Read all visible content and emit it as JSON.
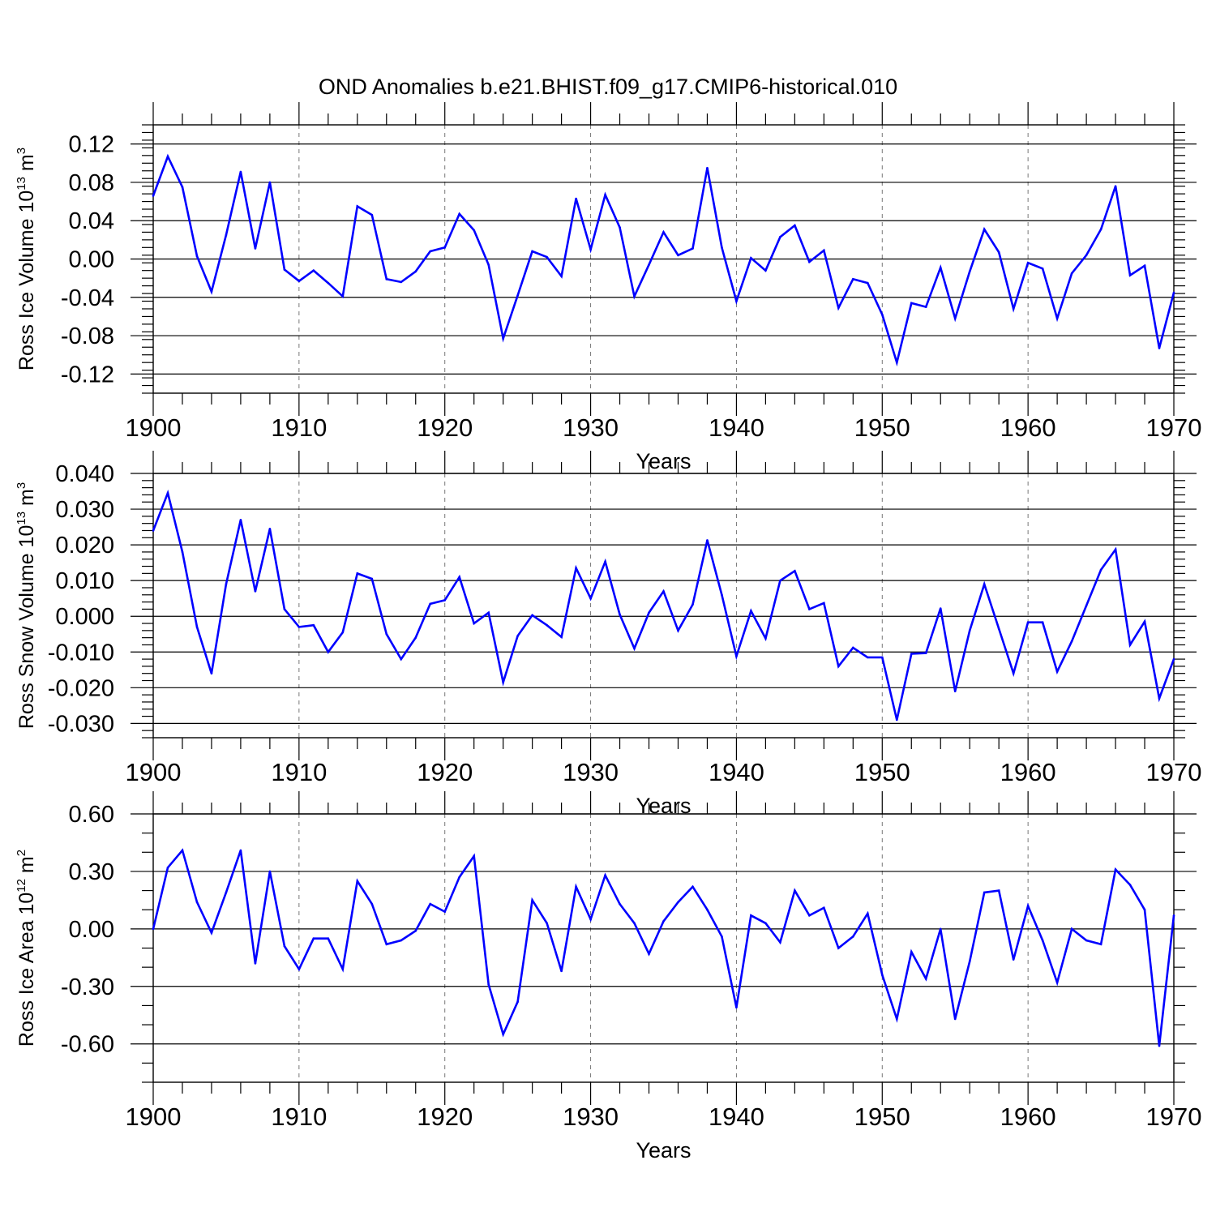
{
  "title": "OND Anomalies b.e21.BHIST.f09_g17.CMIP6-historical.010",
  "colors": {
    "series": "#0000ff",
    "frame": "#000000",
    "grid": "#777777"
  },
  "chart_data": [
    {
      "type": "line",
      "ylabel": {
        "main": "Ross Ice Volume 10",
        "exponent": "13",
        "unit": " m",
        "unit_exponent": "3"
      },
      "xlabel": "Years",
      "xlim": [
        1900,
        1970
      ],
      "ylim": [
        -0.14,
        0.14
      ],
      "yticks": [
        -0.12,
        -0.08,
        -0.04,
        0.0,
        0.04,
        0.08,
        0.12
      ],
      "ytick_labels": [
        "-0.12",
        "-0.08",
        "-0.04",
        "0.00",
        "0.04",
        "0.08",
        "0.12"
      ],
      "yminor": 0.008,
      "xticks": [
        1900,
        1910,
        1920,
        1930,
        1940,
        1950,
        1960,
        1970
      ],
      "xtick_labels": [
        "1900",
        "1910",
        "1920",
        "1930",
        "1940",
        "1950",
        "1960",
        "1970"
      ],
      "grid": "vertical dashed",
      "x": [
        1900,
        1901,
        1902,
        1903,
        1904,
        1905,
        1906,
        1907,
        1908,
        1909,
        1910,
        1911,
        1912,
        1913,
        1914,
        1915,
        1916,
        1917,
        1918,
        1919,
        1920,
        1921,
        1922,
        1923,
        1924,
        1925,
        1926,
        1927,
        1928,
        1929,
        1930,
        1931,
        1932,
        1933,
        1934,
        1935,
        1936,
        1937,
        1938,
        1939,
        1940,
        1941,
        1942,
        1943,
        1944,
        1945,
        1946,
        1947,
        1948,
        1949,
        1950,
        1951,
        1952,
        1953,
        1954,
        1955,
        1956,
        1957,
        1958,
        1959,
        1960,
        1961,
        1962,
        1963,
        1964,
        1965,
        1966,
        1967,
        1968,
        1969,
        1970
      ],
      "values": [
        0.066,
        0.107,
        0.075,
        0.003,
        -0.034,
        0.025,
        0.091,
        0.011,
        0.08,
        -0.011,
        -0.023,
        -0.012,
        -0.025,
        -0.039,
        0.055,
        0.046,
        -0.021,
        -0.024,
        -0.013,
        0.008,
        0.012,
        0.047,
        0.03,
        -0.006,
        -0.083,
        -0.038,
        0.008,
        0.002,
        -0.018,
        0.063,
        0.01,
        0.067,
        0.033,
        -0.039,
        -0.006,
        0.028,
        0.004,
        0.011,
        0.095,
        0.012,
        -0.044,
        0.001,
        -0.012,
        0.023,
        0.035,
        -0.003,
        0.009,
        -0.051,
        -0.021,
        -0.025,
        -0.058,
        -0.108,
        -0.046,
        -0.05,
        -0.009,
        -0.062,
        -0.013,
        0.031,
        0.007,
        -0.052,
        -0.004,
        -0.01,
        -0.062,
        -0.015,
        0.004,
        0.031,
        0.076,
        -0.017,
        -0.007,
        -0.093,
        -0.035
      ]
    },
    {
      "type": "line",
      "ylabel": {
        "main": "Ross Snow Volume 10",
        "exponent": "13",
        "unit": " m",
        "unit_exponent": "3"
      },
      "xlabel": "Years",
      "xlim": [
        1900,
        1970
      ],
      "ylim": [
        -0.034,
        0.04
      ],
      "yticks": [
        -0.03,
        -0.02,
        -0.01,
        0.0,
        0.01,
        0.02,
        0.03,
        0.04
      ],
      "ytick_labels": [
        "-0.030",
        "-0.020",
        "-0.010",
        "0.000",
        "0.010",
        "0.020",
        "0.030",
        "0.040"
      ],
      "yminor": 0.002,
      "xticks": [
        1900,
        1910,
        1920,
        1930,
        1940,
        1950,
        1960,
        1970
      ],
      "xtick_labels": [
        "1900",
        "1910",
        "1920",
        "1930",
        "1940",
        "1950",
        "1960",
        "1970"
      ],
      "grid": "vertical dashed",
      "x": [
        1900,
        1901,
        1902,
        1903,
        1904,
        1905,
        1906,
        1907,
        1908,
        1909,
        1910,
        1911,
        1912,
        1913,
        1914,
        1915,
        1916,
        1917,
        1918,
        1919,
        1920,
        1921,
        1922,
        1923,
        1924,
        1925,
        1926,
        1927,
        1928,
        1929,
        1930,
        1931,
        1932,
        1933,
        1934,
        1935,
        1936,
        1937,
        1938,
        1939,
        1940,
        1941,
        1942,
        1943,
        1944,
        1945,
        1946,
        1947,
        1948,
        1949,
        1950,
        1951,
        1952,
        1953,
        1954,
        1955,
        1956,
        1957,
        1958,
        1959,
        1960,
        1961,
        1962,
        1963,
        1964,
        1965,
        1966,
        1967,
        1968,
        1969,
        1970
      ],
      "values": [
        0.024,
        0.0345,
        0.018,
        -0.003,
        -0.016,
        0.009,
        0.027,
        0.007,
        0.0245,
        0.002,
        -0.003,
        -0.0025,
        -0.01,
        -0.0045,
        0.012,
        0.0105,
        -0.005,
        -0.012,
        -0.006,
        0.0035,
        0.0045,
        0.011,
        -0.002,
        0.001,
        -0.0185,
        -0.0055,
        0.0003,
        -0.0025,
        -0.0058,
        0.0135,
        0.005,
        0.0153,
        0.0005,
        -0.009,
        0.001,
        0.007,
        -0.004,
        0.0033,
        0.0213,
        0.006,
        -0.0112,
        0.0015,
        -0.0062,
        0.01,
        0.0127,
        0.002,
        0.0037,
        -0.014,
        -0.0088,
        -0.0115,
        -0.0115,
        -0.029,
        -0.0105,
        -0.0103,
        0.0022,
        -0.021,
        -0.004,
        0.009,
        -0.0035,
        -0.016,
        -0.0017,
        -0.0017,
        -0.0155,
        -0.007,
        0.003,
        0.013,
        0.0187,
        -0.008,
        -0.0015,
        -0.023,
        -0.012
      ]
    },
    {
      "type": "line",
      "ylabel": {
        "main": "Ross Ice Area 10",
        "exponent": "12",
        "unit": " m",
        "unit_exponent": "2"
      },
      "xlabel": "Years",
      "xlim": [
        1900,
        1970
      ],
      "ylim": [
        -0.8,
        0.6
      ],
      "yticks": [
        -0.6,
        -0.3,
        0.0,
        0.3,
        0.6
      ],
      "ytick_labels": [
        "-0.60",
        "-0.30",
        "0.00",
        "0.30",
        "0.60"
      ],
      "yminor": 0.1,
      "xticks": [
        1900,
        1910,
        1920,
        1930,
        1940,
        1950,
        1960,
        1970
      ],
      "xtick_labels": [
        "1900",
        "1910",
        "1920",
        "1930",
        "1940",
        "1950",
        "1960",
        "1970"
      ],
      "grid": "vertical dashed",
      "x": [
        1900,
        1901,
        1902,
        1903,
        1904,
        1905,
        1906,
        1907,
        1908,
        1909,
        1910,
        1911,
        1912,
        1913,
        1914,
        1915,
        1916,
        1917,
        1918,
        1919,
        1920,
        1921,
        1922,
        1923,
        1924,
        1925,
        1926,
        1927,
        1928,
        1929,
        1930,
        1931,
        1932,
        1933,
        1934,
        1935,
        1936,
        1937,
        1938,
        1939,
        1940,
        1941,
        1942,
        1943,
        1944,
        1945,
        1946,
        1947,
        1948,
        1949,
        1950,
        1951,
        1952,
        1953,
        1954,
        1955,
        1956,
        1957,
        1958,
        1959,
        1960,
        1961,
        1962,
        1963,
        1964,
        1965,
        1966,
        1967,
        1968,
        1969,
        1970
      ],
      "values": [
        0.0,
        0.32,
        0.41,
        0.14,
        -0.02,
        0.19,
        0.41,
        -0.18,
        0.3,
        -0.09,
        -0.21,
        -0.05,
        -0.05,
        -0.21,
        0.25,
        0.13,
        -0.08,
        -0.06,
        -0.01,
        0.13,
        0.09,
        0.27,
        0.38,
        -0.29,
        -0.55,
        -0.38,
        0.15,
        0.03,
        -0.22,
        0.22,
        0.05,
        0.28,
        0.13,
        0.03,
        -0.13,
        0.04,
        0.14,
        0.22,
        0.1,
        -0.04,
        -0.41,
        0.07,
        0.03,
        -0.07,
        0.2,
        0.07,
        0.11,
        -0.1,
        -0.04,
        0.08,
        -0.24,
        -0.47,
        -0.12,
        -0.26,
        0.0,
        -0.47,
        -0.17,
        0.19,
        0.2,
        -0.16,
        0.12,
        -0.06,
        -0.28,
        0.0,
        -0.06,
        -0.08,
        0.31,
        0.23,
        0.1,
        -0.61,
        0.07
      ]
    }
  ]
}
